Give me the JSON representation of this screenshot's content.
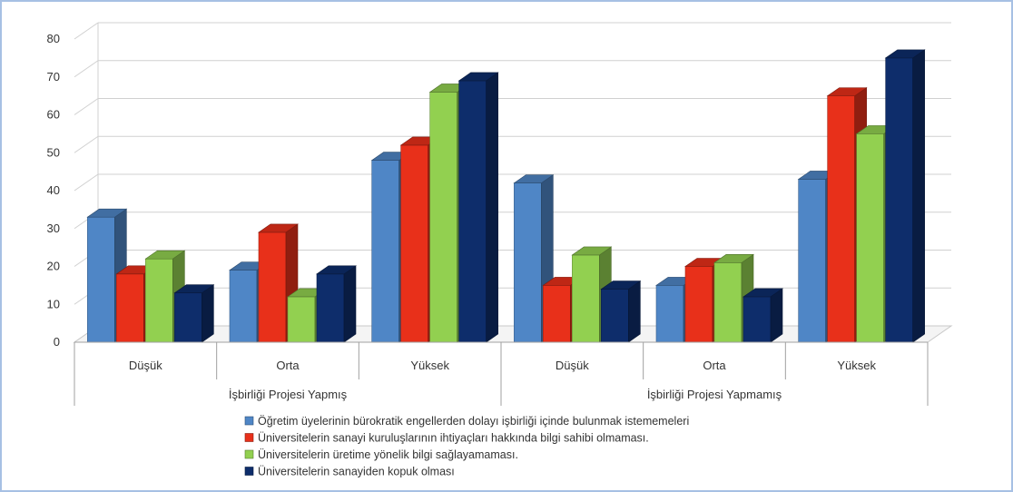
{
  "chart_data": {
    "type": "bar",
    "style": "3d-clustered-column",
    "groups": [
      {
        "label": "İşbirliği Projesi Yapmış",
        "categories": [
          "Düşük",
          "Orta",
          "Yüksek"
        ]
      },
      {
        "label": "İşbirliği Projesi Yapmamış",
        "categories": [
          "Düşük",
          "Orta",
          "Yüksek"
        ]
      }
    ],
    "categories": [
      "Düşük",
      "Orta",
      "Yüksek",
      "Düşük",
      "Orta",
      "Yüksek"
    ],
    "series": [
      {
        "name": "Öğretim üyelerinin bürokratik engellerden dolayı işbirliği içinde bulunmak istememeleri",
        "color": "#4f86c6",
        "values": [
          33,
          19,
          48,
          42,
          15,
          43
        ]
      },
      {
        "name": "Üniversitelerin sanayi kuruluşlarının ihtiyaçları hakkında bilgi sahibi olmaması.",
        "color": "#e8301a",
        "values": [
          18,
          29,
          52,
          15,
          20,
          65
        ]
      },
      {
        "name": "Üniversitelerin üretime yönelik bilgi sağlayamaması.",
        "color": "#92d050",
        "values": [
          22,
          12,
          66,
          23,
          21,
          55
        ]
      },
      {
        "name": "Üniversitelerin sanayiden kopuk olması",
        "color": "#0e2d6b",
        "values": [
          13,
          18,
          69,
          14,
          12,
          75
        ]
      }
    ],
    "ylim": [
      0,
      80
    ],
    "yticks": [
      0,
      10,
      20,
      30,
      40,
      50,
      60,
      70,
      80
    ],
    "grid": true,
    "legend_position": "bottom"
  }
}
